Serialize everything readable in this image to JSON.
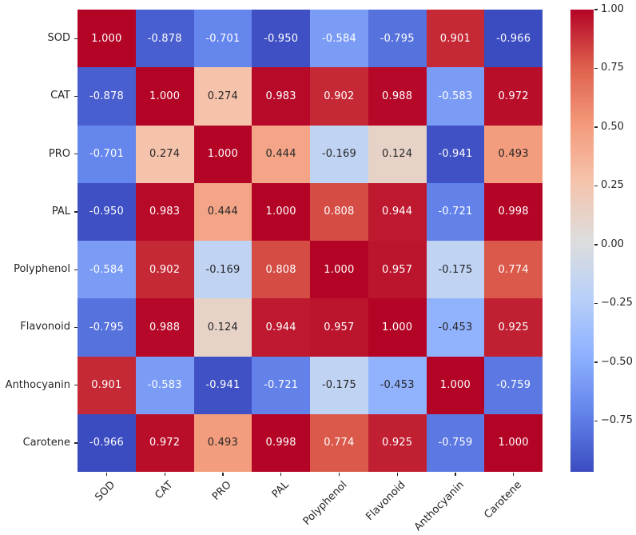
{
  "figure": {
    "background": "#ffffff",
    "text_color": "#262626"
  },
  "chart_data": {
    "type": "heatmap",
    "title": "",
    "xlabel": "",
    "ylabel": "",
    "categories": [
      "SOD",
      "CAT",
      "PRO",
      "PAL",
      "Polyphenol",
      "Flavonoid",
      "Anthocyanin",
      "Carotene"
    ],
    "matrix": [
      [
        1.0,
        -0.878,
        -0.701,
        -0.95,
        -0.584,
        -0.795,
        0.901,
        -0.966
      ],
      [
        -0.878,
        1.0,
        0.274,
        0.983,
        0.902,
        0.988,
        -0.583,
        0.972
      ],
      [
        -0.701,
        0.274,
        1.0,
        0.444,
        -0.169,
        0.124,
        -0.941,
        0.493
      ],
      [
        -0.95,
        0.983,
        0.444,
        1.0,
        0.808,
        0.944,
        -0.721,
        0.998
      ],
      [
        -0.584,
        0.902,
        -0.169,
        0.808,
        1.0,
        0.957,
        -0.175,
        0.774
      ],
      [
        -0.795,
        0.988,
        0.124,
        0.944,
        0.957,
        1.0,
        -0.453,
        0.925
      ],
      [
        0.901,
        -0.583,
        -0.941,
        -0.721,
        -0.175,
        -0.453,
        1.0,
        -0.759
      ],
      [
        -0.966,
        0.972,
        0.493,
        0.998,
        0.774,
        0.925,
        -0.759,
        1.0
      ]
    ],
    "annotation_decimals": 3,
    "vmin": -0.966,
    "vmax": 1.0,
    "grid": false,
    "legend_position": "right-colorbar",
    "colormap": {
      "name": "coolwarm",
      "stops": [
        {
          "t": 0.0,
          "color": "#3b4cc0"
        },
        {
          "t": 0.125,
          "color": "#6282ea"
        },
        {
          "t": 0.25,
          "color": "#8db0fe"
        },
        {
          "t": 0.375,
          "color": "#b8d0f9"
        },
        {
          "t": 0.5,
          "color": "#dddddd"
        },
        {
          "t": 0.625,
          "color": "#f5c4ad"
        },
        {
          "t": 0.75,
          "color": "#f49a7b"
        },
        {
          "t": 0.875,
          "color": "#de604d"
        },
        {
          "t": 1.0,
          "color": "#b40426"
        }
      ]
    },
    "annotation_colors": {
      "light_text": "#ffffff",
      "dark_text": "#262626",
      "luminance_threshold": 0.408
    },
    "colorbar": {
      "tick_values": [
        1.0,
        0.75,
        0.5,
        0.25,
        0.0,
        -0.25,
        -0.5,
        -0.75
      ],
      "tick_labels": [
        "1.00",
        "0.75",
        "0.50",
        "0.25",
        "0.00",
        "−0.25",
        "−0.50",
        "−0.75"
      ]
    }
  }
}
